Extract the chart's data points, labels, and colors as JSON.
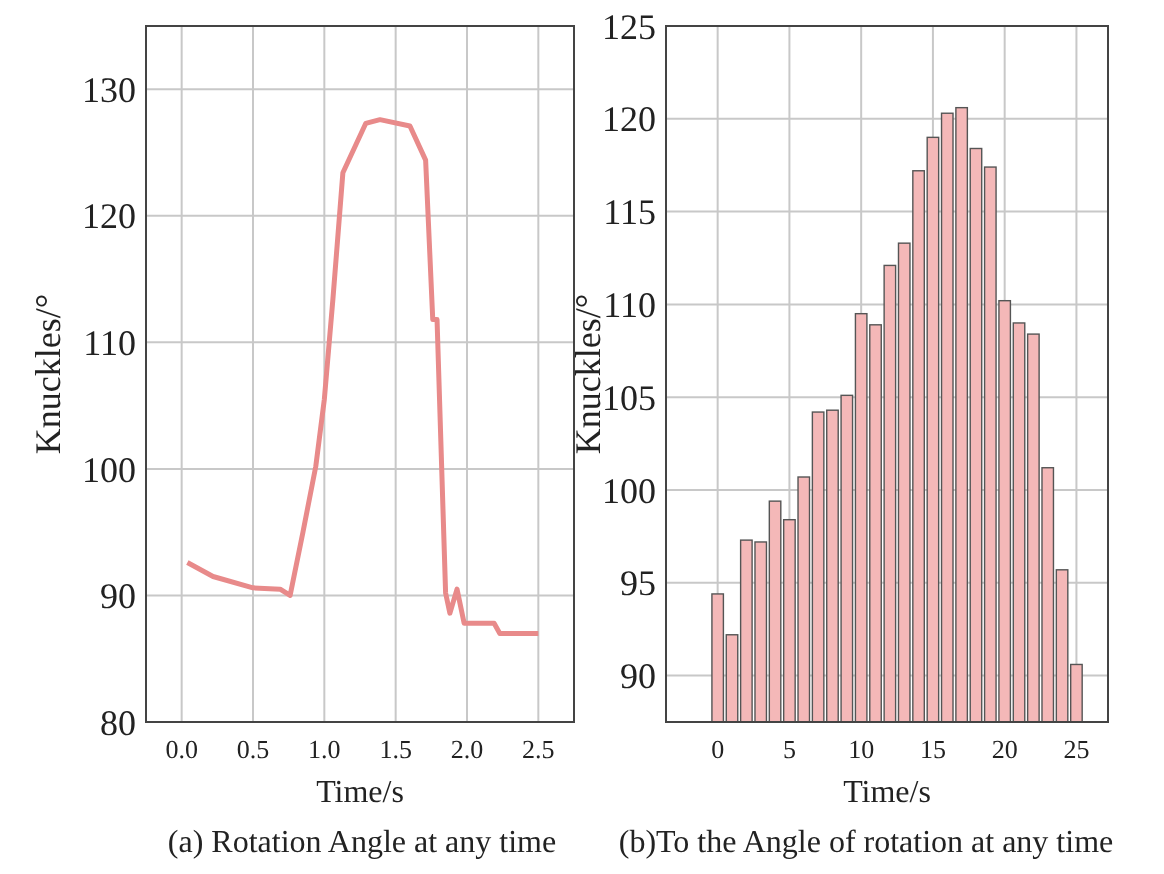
{
  "chart_data": [
    {
      "type": "line",
      "title": "(a) Rotation Angle at any time",
      "xlabel": "Time/s",
      "ylabel": "Knuckles/°",
      "xlim": [
        -0.25,
        2.75
      ],
      "xticks": [
        {
          "value": 0,
          "label": "0.0"
        },
        0.5,
        {
          "value": 1,
          "label": "1.0"
        },
        1.5,
        {
          "value": 2,
          "label": "2.0"
        },
        2.5
      ],
      "ylim": [
        80,
        135
      ],
      "yticks": [
        80,
        90,
        100,
        110,
        120,
        130
      ],
      "grid": true,
      "marker": "none",
      "line_style": "solid",
      "series": [
        {
          "color": "#e88a8a",
          "x": [
            0.04,
            0.22,
            0.5,
            0.69,
            0.76,
            0.85,
            0.94,
            1.0,
            1.06,
            1.13,
            1.29,
            1.39,
            1.6,
            1.71,
            1.76,
            1.79,
            1.85,
            1.88,
            1.93,
            1.98,
            2.05,
            2.1,
            2.15,
            2.19,
            2.23,
            2.5
          ],
          "values": [
            92.6,
            91.5,
            90.6,
            90.5,
            90.0,
            95,
            100.2,
            105.5,
            113.4,
            123.4,
            127.3,
            127.6,
            127.1,
            124.4,
            111.8,
            111.8,
            90.2,
            88.6,
            90.5,
            87.8,
            87.8,
            87.8,
            87.8,
            87.8,
            87,
            87
          ]
        }
      ]
    },
    {
      "type": "bar",
      "title": "(b)To the Angle of rotation at any time",
      "xlabel": "Time/s",
      "ylabel": "Knuckles/°",
      "xlim": [
        -3.6,
        27.2
      ],
      "xticks": [
        0,
        5,
        10,
        15,
        20,
        25
      ],
      "ylim": [
        87.5,
        125
      ],
      "yticks": [
        90,
        95,
        100,
        105,
        110,
        115,
        120,
        125
      ],
      "grid": true,
      "x": [
        0,
        1,
        2,
        3,
        4,
        5,
        6,
        7,
        8,
        9,
        10,
        11,
        12,
        13,
        14,
        15,
        16,
        17,
        18,
        19,
        20,
        21,
        22,
        23,
        24,
        25
      ],
      "series": [
        {
          "color": "#f4b8b8",
          "values": [
            94.4,
            92.2,
            97.3,
            97.2,
            99.4,
            98.4,
            100.7,
            104.2,
            104.3,
            105.1,
            109.5,
            108.9,
            112.1,
            113.3,
            117.2,
            119,
            120.3,
            120.6,
            118.4,
            117.4,
            110.2,
            109,
            108.4,
            101.2,
            95.7,
            90.6
          ]
        }
      ]
    }
  ]
}
